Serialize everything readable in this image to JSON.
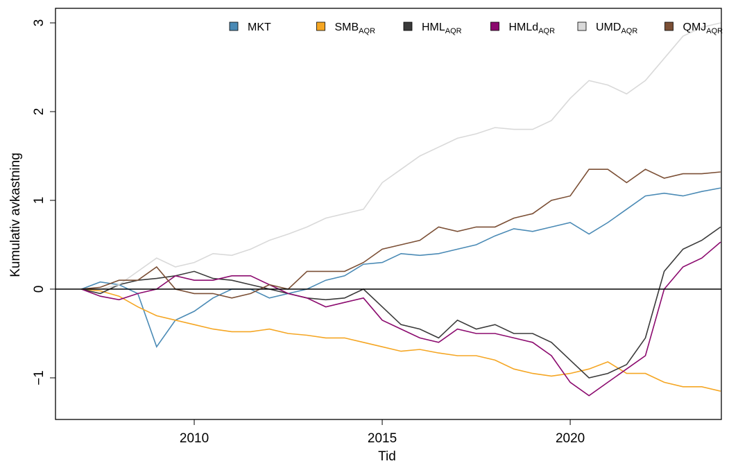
{
  "chart_data": {
    "type": "line",
    "x_label": "Tid",
    "y_label": "Kumulativ avkastning",
    "x": [
      2007,
      2007.5,
      2008,
      2008.5,
      2009,
      2009.5,
      2010,
      2010.5,
      2011,
      2011.5,
      2012,
      2012.5,
      2013,
      2013.5,
      2014,
      2014.5,
      2015,
      2015.5,
      2016,
      2016.5,
      2017,
      2017.5,
      2018,
      2018.5,
      2019,
      2019.5,
      2020,
      2020.5,
      2021,
      2021.5,
      2022,
      2022.5,
      2023,
      2023.5,
      2024
    ],
    "xlim": [
      2006.31,
      2024.02
    ],
    "xticks": [
      2010,
      2015,
      2020
    ],
    "ylim": [
      -1.469,
      3.164
    ],
    "yticks": [
      {
        "value": -1,
        "label": "−1"
      },
      0,
      1,
      2,
      3
    ],
    "hline": 0,
    "series": [
      {
        "name": "MKT",
        "color": "#4a8ab5",
        "values": [
          0,
          0.08,
          0.05,
          -0.05,
          -0.65,
          -0.35,
          -0.25,
          -0.1,
          0,
          0,
          -0.1,
          -0.05,
          0,
          0.1,
          0.15,
          0.28,
          0.3,
          0.4,
          0.38,
          0.4,
          0.45,
          0.5,
          0.6,
          0.68,
          0.65,
          0.7,
          0.75,
          0.62,
          0.75,
          0.9,
          1.05,
          1.08,
          1.05,
          1.1,
          1.14
        ]
      },
      {
        "name": "SMB",
        "subscript": "AQR",
        "color": "#f5a623",
        "values": [
          0,
          -0.02,
          -0.08,
          -0.2,
          -0.3,
          -0.35,
          -0.4,
          -0.45,
          -0.48,
          -0.48,
          -0.45,
          -0.5,
          -0.52,
          -0.55,
          -0.55,
          -0.6,
          -0.65,
          -0.7,
          -0.68,
          -0.72,
          -0.75,
          -0.75,
          -0.8,
          -0.9,
          -0.95,
          -0.98,
          -0.95,
          -0.9,
          -0.82,
          -0.95,
          -0.95,
          -1.05,
          -1.1,
          -1.1,
          -1.15
        ]
      },
      {
        "name": "HML",
        "subscript": "AQR",
        "color": "#3a3a3a",
        "values": [
          0,
          -0.05,
          0.05,
          0.1,
          0.12,
          0.15,
          0.2,
          0.12,
          0.1,
          0.05,
          0,
          -0.05,
          -0.1,
          -0.12,
          -0.1,
          0,
          -0.2,
          -0.4,
          -0.45,
          -0.55,
          -0.35,
          -0.45,
          -0.4,
          -0.5,
          -0.5,
          -0.6,
          -0.8,
          -1.0,
          -0.95,
          -0.85,
          -0.55,
          0.2,
          0.45,
          0.55,
          0.7
        ]
      },
      {
        "name": "HMLd",
        "subscript": "AQR",
        "color": "#8b0a6e",
        "values": [
          0,
          -0.08,
          -0.12,
          -0.05,
          0,
          0.15,
          0.1,
          0.1,
          0.15,
          0.15,
          0.05,
          -0.05,
          -0.1,
          -0.2,
          -0.15,
          -0.1,
          -0.35,
          -0.45,
          -0.55,
          -0.6,
          -0.45,
          -0.5,
          -0.5,
          -0.55,
          -0.6,
          -0.75,
          -1.05,
          -1.2,
          -1.05,
          -0.9,
          -0.75,
          0,
          0.25,
          0.35,
          0.53
        ]
      },
      {
        "name": "UMD",
        "subscript": "AQR",
        "color": "#d9d9d9",
        "values": [
          0,
          0,
          0.05,
          0.2,
          0.35,
          0.25,
          0.3,
          0.4,
          0.38,
          0.45,
          0.55,
          0.62,
          0.7,
          0.8,
          0.85,
          0.9,
          1.2,
          1.35,
          1.5,
          1.6,
          1.7,
          1.75,
          1.82,
          1.8,
          1.8,
          1.9,
          2.15,
          2.35,
          2.3,
          2.2,
          2.35,
          2.6,
          2.85,
          2.95,
          3.0
        ]
      },
      {
        "name": "QMJ",
        "subscript": "AQR",
        "color": "#7b4f35",
        "values": [
          0,
          0.02,
          0.1,
          0.1,
          0.25,
          0,
          -0.05,
          -0.05,
          -0.1,
          -0.05,
          0.05,
          0,
          0.2,
          0.2,
          0.2,
          0.3,
          0.45,
          0.5,
          0.55,
          0.7,
          0.65,
          0.7,
          0.7,
          0.8,
          0.85,
          1.0,
          1.05,
          1.35,
          1.35,
          1.2,
          1.35,
          1.25,
          1.3,
          1.3,
          1.32
        ]
      }
    ]
  }
}
